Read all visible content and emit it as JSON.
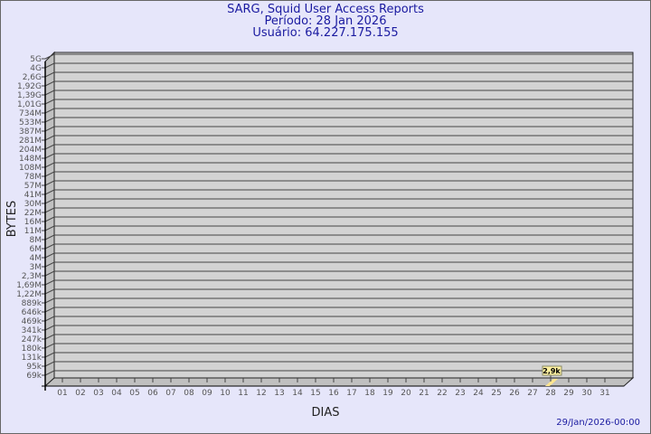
{
  "header": {
    "title": "SARG, Squid User Access Reports",
    "period": "Período: 28 Jan 2026",
    "user": "Usuário: 64.227.175.155"
  },
  "footer": {
    "timestamp": "29/Jan/2026-00:00"
  },
  "chart_data": {
    "type": "bar",
    "title": "SARG, Squid User Access Reports",
    "xlabel": "DIAS",
    "ylabel": "BYTES",
    "y_scale": "log",
    "grid": true,
    "y_ticks": [
      "5G",
      "4G",
      "2,6G",
      "1,92G",
      "1,39G",
      "1,01G",
      "734M",
      "533M",
      "387M",
      "281M",
      "204M",
      "148M",
      "108M",
      "78M",
      "57M",
      "41M",
      "30M",
      "22M",
      "16M",
      "11M",
      "8M",
      "6M",
      "4M",
      "3M",
      "2,3M",
      "1,69M",
      "1,22M",
      "889k",
      "646k",
      "469k",
      "341k",
      "247k",
      "180k",
      "131k",
      "95k",
      "69k"
    ],
    "categories": [
      "01",
      "02",
      "03",
      "04",
      "05",
      "06",
      "07",
      "08",
      "09",
      "10",
      "11",
      "12",
      "13",
      "14",
      "15",
      "16",
      "17",
      "18",
      "19",
      "20",
      "21",
      "22",
      "23",
      "24",
      "25",
      "26",
      "27",
      "28",
      "29",
      "30",
      "31"
    ],
    "series": [
      {
        "values": [
          null,
          null,
          null,
          null,
          null,
          null,
          null,
          null,
          null,
          null,
          null,
          null,
          null,
          null,
          null,
          null,
          null,
          null,
          null,
          null,
          null,
          null,
          null,
          null,
          null,
          null,
          null,
          2900,
          null,
          null,
          null
        ],
        "labels": {
          "28": "2,9k"
        }
      }
    ],
    "colors": {
      "plot": "#d3d3d3",
      "wall": "#c0c0c0",
      "bar": "#fde58f",
      "text": "#1a1aa0"
    }
  }
}
